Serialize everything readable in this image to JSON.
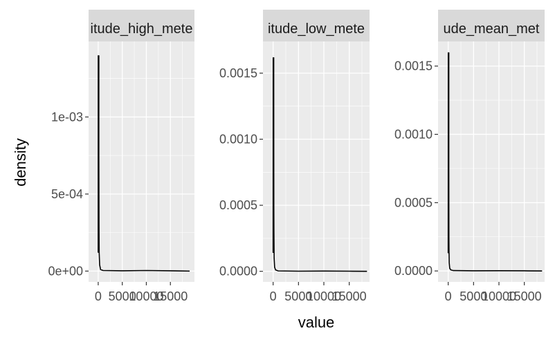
{
  "chart_data": {
    "type": "area",
    "xlabel": "value",
    "ylabel": "density",
    "colors": {
      "panel_bg": "#ebebeb",
      "strip_bg": "#d9d9d9",
      "grid": "#ffffff",
      "line": "#000000",
      "tick": "#333333"
    },
    "panels": [
      {
        "strip": "itude_high_mete",
        "xlim": [
          -2000,
          20000
        ],
        "ylim": [
          -7e-05,
          0.00149
        ],
        "x_ticks": [
          0,
          5000,
          10000,
          15000
        ],
        "x_tick_labels": [
          "0",
          "5000",
          "10000",
          "15000"
        ],
        "y_ticks": [
          0,
          0.0005,
          0.001
        ],
        "y_tick_labels": [
          "0e+00",
          "5e-04",
          "1e-03"
        ],
        "series": [
          {
            "x": [
              0,
              10,
              20,
              40,
              60,
              80,
              100,
              130,
              160,
              200,
              300,
              500,
              1000,
              5000,
              10000,
              15000,
              19000
            ],
            "y": [
              0.00012,
              0.0006,
              0.0014,
              0.0011,
              0.0013,
              0.00125,
              0.0009,
              0.0006,
              0.0003,
              0.00012,
              4e-05,
              1e-05,
              4e-06,
              2e-06,
              4e-06,
              2e-06,
              0.0
            ]
          }
        ]
      },
      {
        "strip": "itude_low_mete",
        "xlim": [
          -2000,
          19000
        ],
        "ylim": [
          -8e-05,
          0.00174
        ],
        "x_ticks": [
          0,
          5000,
          10000,
          15000
        ],
        "x_tick_labels": [
          "0",
          "5000",
          "10000",
          "15000"
        ],
        "y_ticks": [
          0,
          0.0005,
          0.001,
          0.0015
        ],
        "y_tick_labels": [
          "0.0000",
          "0.0005",
          "0.0010",
          "0.0015"
        ],
        "series": [
          {
            "x": [
              0,
              10,
              20,
              40,
              60,
              80,
              100,
              130,
              160,
              200,
              300,
              500,
              1000,
              5000,
              10000,
              15000,
              18500
            ],
            "y": [
              0.00014,
              0.0007,
              0.00162,
              0.0014,
              0.0015,
              0.0013,
              0.0009,
              0.0006,
              0.0003,
              0.0001,
              3e-05,
              1e-05,
              3e-06,
              1e-06,
              2e-06,
              1e-06,
              0.0
            ]
          }
        ]
      },
      {
        "strip": "ude_mean_met",
        "xlim": [
          -2000,
          19000
        ],
        "ylim": [
          -8e-05,
          0.00168
        ],
        "x_ticks": [
          0,
          5000,
          10000,
          15000
        ],
        "x_tick_labels": [
          "0",
          "5000",
          "10000",
          "15000"
        ],
        "y_ticks": [
          0,
          0.0005,
          0.001,
          0.0015
        ],
        "y_tick_labels": [
          "0.0000",
          "0.0005",
          "0.0010",
          "0.0015"
        ],
        "series": [
          {
            "x": [
              0,
              10,
              20,
              40,
              60,
              80,
              100,
              130,
              160,
              200,
              300,
              500,
              1000,
              5000,
              10000,
              15000,
              18500
            ],
            "y": [
              0.00013,
              0.0006,
              0.0016,
              0.0012,
              0.0008,
              0.0007,
              0.0005,
              0.0003,
              0.00015,
              6e-05,
              2e-05,
              8e-06,
              3e-06,
              1e-06,
              2e-06,
              1e-06,
              0.0
            ]
          }
        ]
      }
    ]
  }
}
